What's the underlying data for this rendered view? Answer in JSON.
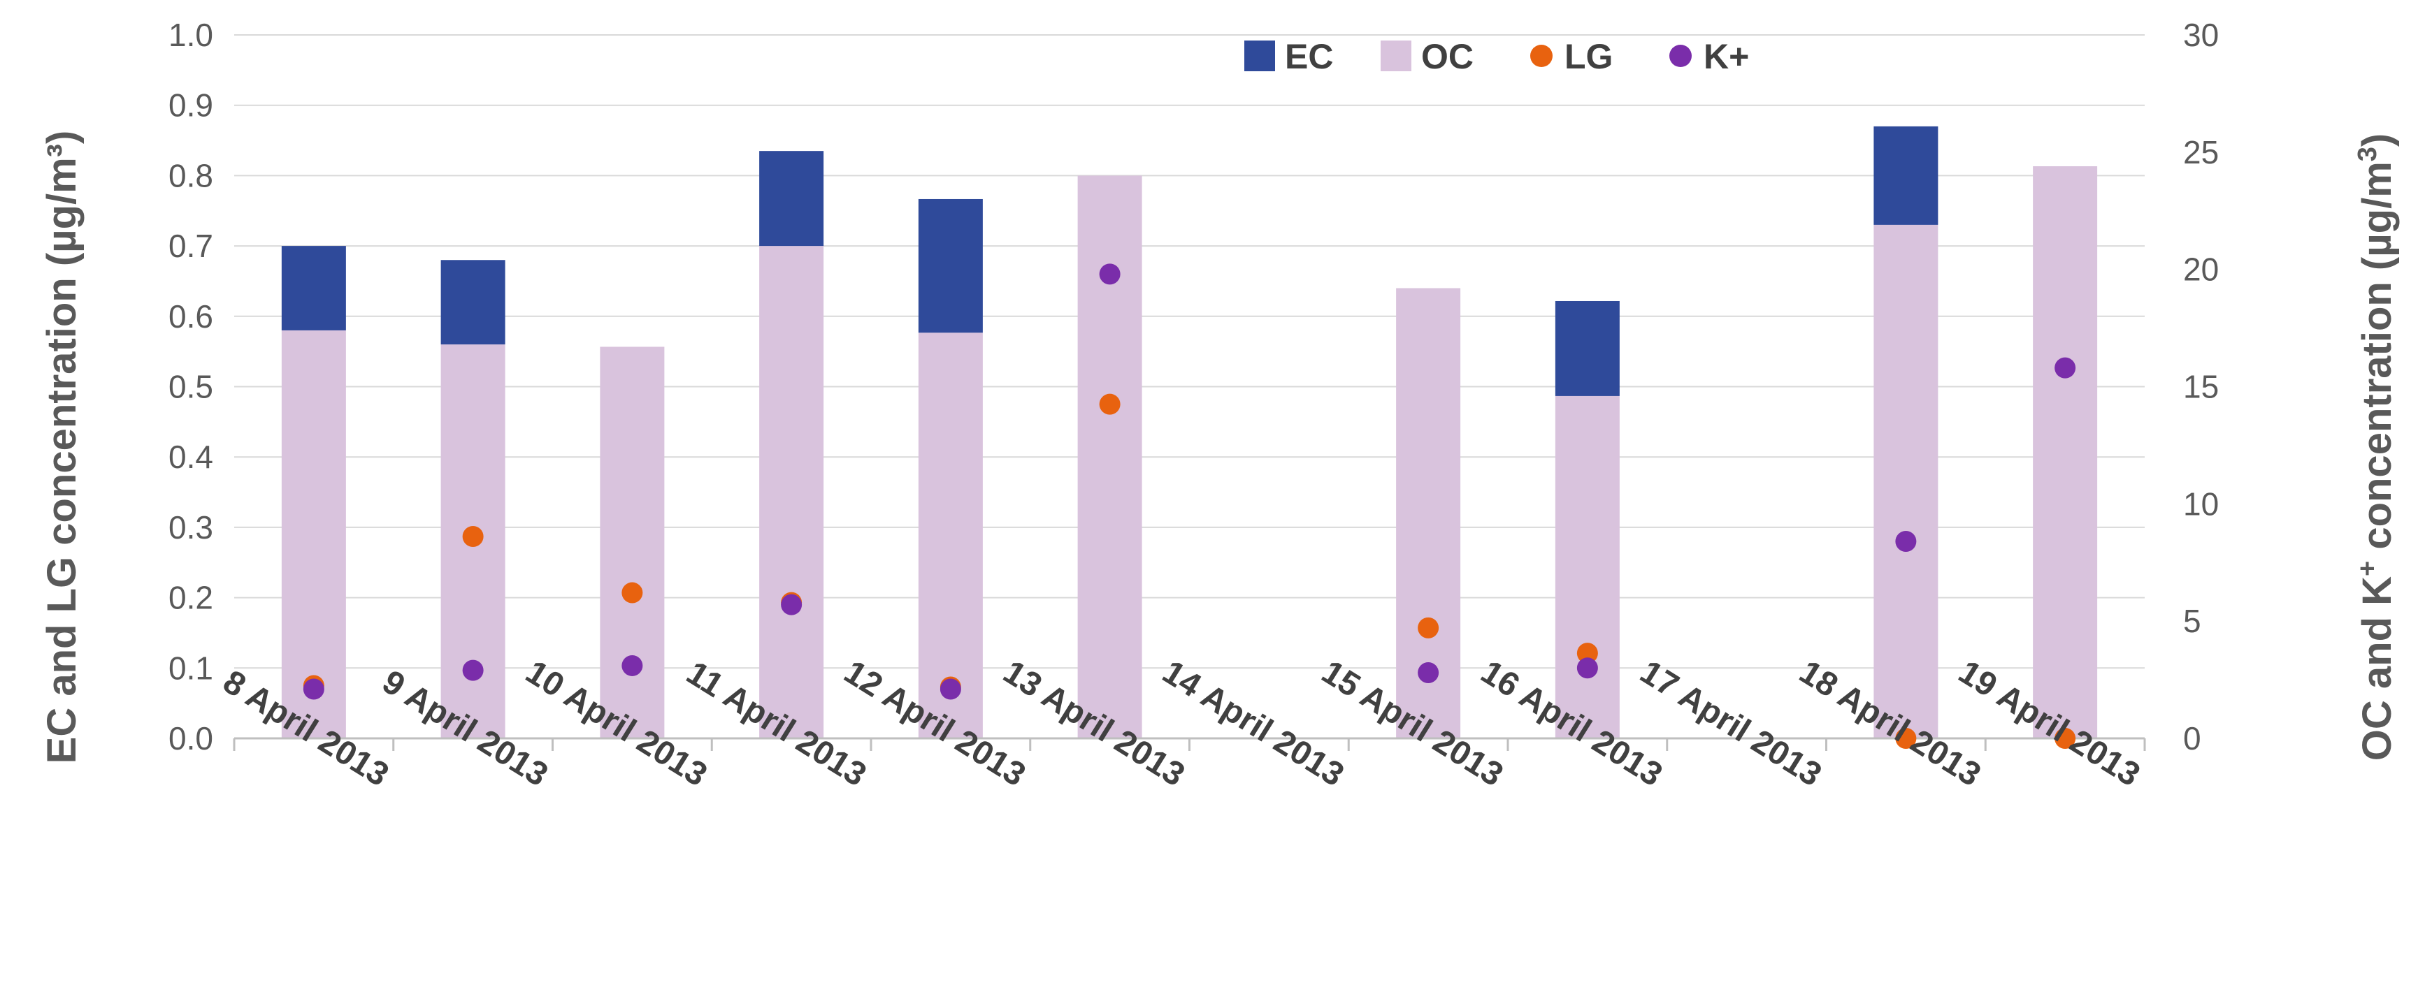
{
  "chart_data": {
    "type": "bar",
    "categories": [
      "8 April 2013",
      "9 April 2013",
      "10 April 2013",
      "11 April 2013",
      "12 April 2013",
      "13 April 2013",
      "14 April 2013",
      "15 April 2013",
      "16 April 2013",
      "17 April 2013",
      "18 April 2013",
      "19 April 2013"
    ],
    "ylabel_left": "EC and LG concentration (µg/m³)",
    "ylabel_right_parts": [
      "OC and K",
      "+",
      " concentration (µg/m",
      "3",
      ")"
    ],
    "ylim_left": [
      0,
      1.0
    ],
    "ylim_right": [
      0,
      30
    ],
    "yticks_left": [
      "0.0",
      "0.1",
      "0.2",
      "0.3",
      "0.4",
      "0.5",
      "0.6",
      "0.7",
      "0.8",
      "0.9",
      "1.0"
    ],
    "yticks_right": [
      "0",
      "5",
      "10",
      "15",
      "20",
      "25",
      "30"
    ],
    "stacked_bar_note": "EC is stacked on top of OC; OC bar heights read on left axis scale",
    "series": [
      {
        "name": "EC",
        "kind": "bar",
        "axis": "left",
        "color": "#2F4A9A",
        "values": [
          0.12,
          0.12,
          0.0,
          0.135,
          0.19,
          0.0,
          null,
          0.0,
          0.135,
          null,
          0.14,
          0.0
        ]
      },
      {
        "name": "OC",
        "kind": "bar",
        "axis": "right",
        "color": "#D9C3DD",
        "values": [
          17.4,
          16.8,
          16.7,
          21.0,
          17.3,
          24.0,
          null,
          19.2,
          14.6,
          null,
          21.9,
          24.4
        ]
      },
      {
        "name": "LG",
        "kind": "point",
        "axis": "left",
        "color": "#E8620F",
        "values": [
          0.075,
          0.287,
          0.207,
          0.193,
          0.073,
          0.475,
          null,
          0.157,
          0.121,
          null,
          0.0,
          0.0
        ]
      },
      {
        "name": "K+",
        "kind": "point",
        "axis": "right",
        "color": "#7A2DAA",
        "values": [
          2.1,
          2.9,
          3.1,
          5.7,
          2.1,
          19.8,
          null,
          2.8,
          3.0,
          null,
          8.4,
          15.8
        ]
      }
    ],
    "legend": [
      "EC",
      "OC",
      "LG",
      "K+"
    ],
    "legend_position": "top"
  }
}
